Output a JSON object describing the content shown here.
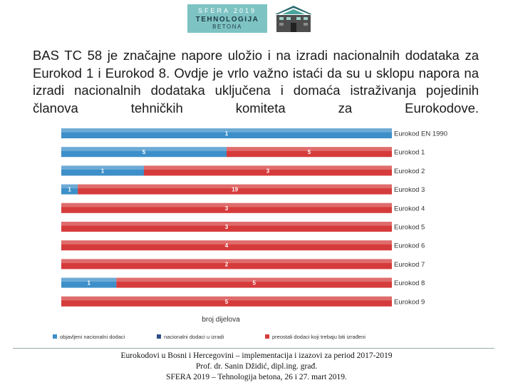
{
  "header": {
    "logo_line1": "SFERA 2019",
    "logo_line2": "TEHNOLOGIJA",
    "logo_line3": "BETONA"
  },
  "intro_text": "BAS TC 58 je značajne napore uložio i na izradi nacionalnih dodataka za Eurokod 1 i Eurokod 8. Ovdje je vrlo važno istaći da su u sklopu napora na izradi nacionalnih dodataka uključena i domaća istraživanja pojedinih članova tehničkih komiteta za Eurokodove.",
  "chart_data": {
    "type": "bar",
    "orientation": "horizontal",
    "stacked": true,
    "percent_stacked": true,
    "xlabel": "broj dijelova",
    "categories": [
      "Eurokod EN 1990",
      "Eurokod 1",
      "Eurokod 2",
      "Eurokod 3",
      "Eurokod 4",
      "Eurokod 5",
      "Eurokod 6",
      "Eurokod 7",
      "Eurokod 8",
      "Eurokod 9"
    ],
    "series": [
      {
        "name": "objavljeni nacionalni dodaci",
        "color": "#3d8fc9",
        "values": [
          1,
          5,
          1,
          1,
          0,
          0,
          0,
          0,
          1,
          0
        ]
      },
      {
        "name": "nacionalni dodaci u izradi",
        "color": "#2c4f86",
        "values": [
          0,
          0,
          0,
          0,
          0,
          0,
          0,
          0,
          0,
          0
        ]
      },
      {
        "name": "preostali dodaci koji trebaju biti izrađeni",
        "color": "#d63b3b",
        "values": [
          0,
          5,
          3,
          19,
          3,
          3,
          4,
          2,
          5,
          5
        ]
      }
    ],
    "legend_position": "bottom"
  },
  "footer": {
    "line1": "Eurokodovi u Bosni i Hercegovini – implementacija i izazovi za period 2017-2019",
    "line2": "Prof. dr. Sanin Džidić, dipl.ing. građ.",
    "line3": "SFERA 2019 – Tehnologija betona, 26 i 27. mart 2019."
  }
}
